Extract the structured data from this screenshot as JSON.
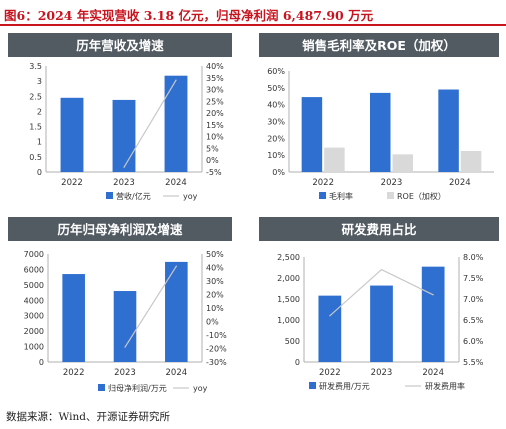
{
  "figure_title": "图6：2024 年实现营收 3.18 亿元，归母净利润 6,487.90 万元",
  "source_note": "数据来源：Wind、开源证券研究所",
  "colors": {
    "title_red": "#c8141e",
    "header_bg": "#525a62",
    "bar_blue": "#2f6fd0",
    "bar_gray": "#d9d9d9",
    "line_gray": "#c8c8c8",
    "axis": "#b0b0b0"
  },
  "chart_data": [
    {
      "type": "bar",
      "title": "历年营收及增速",
      "categories": [
        "2022",
        "2023",
        "2024"
      ],
      "series": [
        {
          "name": "营收/亿元",
          "kind": "bar",
          "axis": "left",
          "values": [
            2.45,
            2.38,
            3.18
          ]
        },
        {
          "name": "yoy",
          "kind": "line",
          "axis": "right",
          "values": [
            null,
            -3,
            34
          ]
        }
      ],
      "ylim": [
        0,
        3.5
      ],
      "yticks": [
        "0",
        "0.5",
        "1",
        "1.5",
        "2",
        "2.5",
        "3",
        "3.5"
      ],
      "y2lim": [
        -5,
        40
      ],
      "y2ticks": [
        "-5%",
        "0%",
        "5%",
        "10%",
        "15%",
        "20%",
        "25%",
        "30%",
        "35%",
        "40%"
      ],
      "legend_position": "bottom"
    },
    {
      "type": "bar",
      "title": "销售毛利率及ROE（加权）",
      "categories": [
        "2022",
        "2023",
        "2024"
      ],
      "series": [
        {
          "name": "毛利率",
          "kind": "bar",
          "values": [
            44.5,
            47,
            49
          ]
        },
        {
          "name": "ROE（加权）",
          "kind": "bar",
          "values": [
            14.5,
            10.5,
            12.5
          ]
        }
      ],
      "ylim": [
        0,
        60
      ],
      "yticks": [
        "0%",
        "10%",
        "20%",
        "30%",
        "40%",
        "50%",
        "60%"
      ],
      "legend_position": "bottom"
    },
    {
      "type": "bar",
      "title": "历年归母净利润及增速",
      "categories": [
        "2022",
        "2023",
        "2024"
      ],
      "series": [
        {
          "name": "归母净利润/万元",
          "kind": "bar",
          "axis": "left",
          "values": [
            5700,
            4600,
            6488
          ]
        },
        {
          "name": "yoy",
          "kind": "line",
          "axis": "right",
          "values": [
            null,
            -19,
            41
          ]
        }
      ],
      "ylim": [
        0,
        7000
      ],
      "yticks": [
        "0",
        "1000",
        "2000",
        "3000",
        "4000",
        "5000",
        "6000",
        "7000"
      ],
      "y2lim": [
        -30,
        50
      ],
      "y2ticks": [
        "-30%",
        "-20%",
        "-10%",
        "0%",
        "10%",
        "20%",
        "30%",
        "40%",
        "50%"
      ],
      "legend_position": "bottom"
    },
    {
      "type": "bar",
      "title": "研发费用占比",
      "categories": [
        "2022",
        "2023",
        "2024"
      ],
      "series": [
        {
          "name": "研发费用/万元",
          "kind": "bar",
          "axis": "left",
          "values": [
            1580,
            1820,
            2270
          ]
        },
        {
          "name": "研发费用率",
          "kind": "line",
          "axis": "right",
          "values": [
            6.6,
            7.7,
            7.1
          ]
        }
      ],
      "ylim": [
        0,
        2500
      ],
      "yticks": [
        "0",
        "500",
        "1,000",
        "1,500",
        "2,000",
        "2,500"
      ],
      "y2lim": [
        5.5,
        8.0
      ],
      "y2ticks": [
        "5.5%",
        "6.0%",
        "6.5%",
        "7.0%",
        "7.5%",
        "8.0%"
      ],
      "legend_position": "bottom"
    }
  ]
}
